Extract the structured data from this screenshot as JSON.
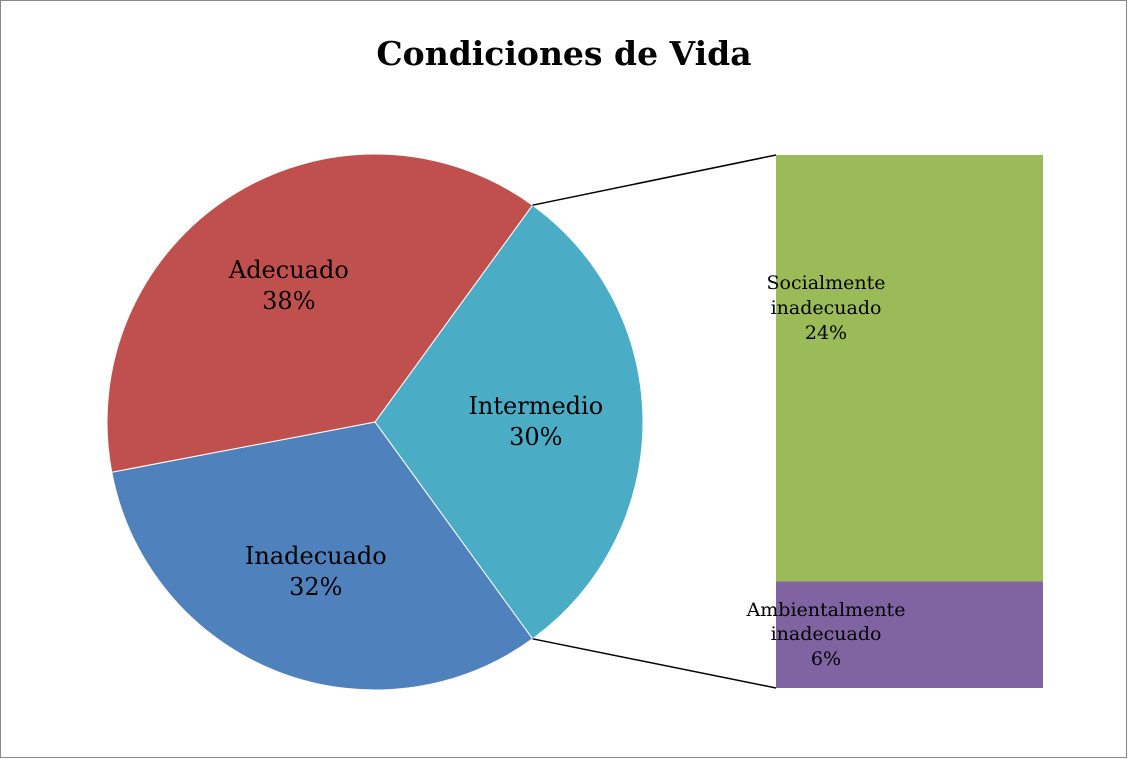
{
  "chart_data": {
    "type": "pie",
    "title": "Condiciones de Vida",
    "categories": [
      "Intermedio",
      "Inadecuado",
      "Adecuado"
    ],
    "values": [
      30,
      32,
      38
    ],
    "value_labels": [
      "30%",
      "32%",
      "38%"
    ],
    "colors": [
      "#4bacc6",
      "#4f81bd",
      "#c0504d"
    ],
    "bar": {
      "categories": [
        "Socialmente inadecuado",
        "Ambientalmente inadecuado"
      ],
      "values": [
        24,
        6
      ],
      "value_labels": [
        "24%",
        "6%"
      ],
      "colors": [
        "#9bbb59",
        "#8064a2"
      ]
    }
  }
}
